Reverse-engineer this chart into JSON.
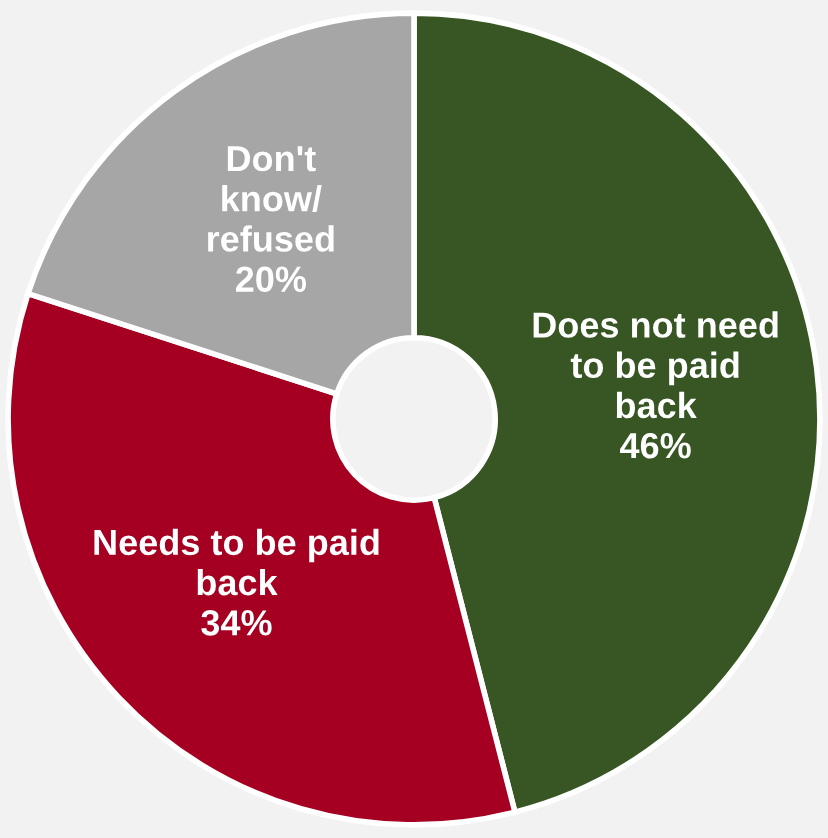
{
  "chart_data": {
    "type": "donut",
    "categories": [
      "Does not need\nto be paid\nback",
      "Needs to be paid\nback",
      "Don't\nknow/\nrefused"
    ],
    "values": [
      46,
      34,
      20
    ],
    "value_labels": [
      "46%",
      "34%",
      "20%"
    ],
    "colors": [
      "#375623",
      "#a50021",
      "#a6a6a6"
    ],
    "legend": false
  }
}
